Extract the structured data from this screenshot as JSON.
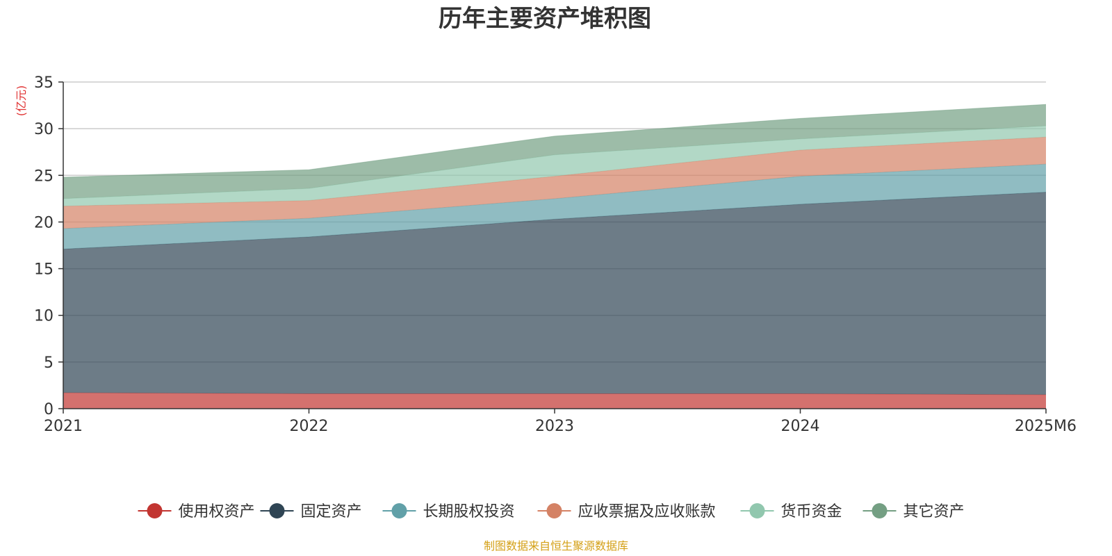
{
  "chart_data": {
    "type": "area",
    "stacked": true,
    "title": "历年主要资产堆积图",
    "ylabel": "(亿元)",
    "xlabel": "",
    "categories": [
      "2021",
      "2022",
      "2023",
      "2024",
      "2025M6"
    ],
    "yticks": [
      "0",
      "5",
      "10",
      "15",
      "20",
      "25",
      "30",
      "35"
    ],
    "ylim": [
      0,
      35
    ],
    "grid": true,
    "legend_position": "bottom",
    "series": [
      {
        "name": "使用权资产",
        "color": "#c23531",
        "values": [
          1.7,
          1.6,
          1.6,
          1.6,
          1.5
        ]
      },
      {
        "name": "固定资产",
        "color": "#2f4554",
        "values": [
          15.4,
          16.8,
          18.7,
          20.3,
          21.7
        ]
      },
      {
        "name": "长期股权投资",
        "color": "#61a0a8",
        "values": [
          2.2,
          2.0,
          2.2,
          3.0,
          3.0
        ]
      },
      {
        "name": "应收票据及应收账款",
        "color": "#d48265",
        "values": [
          2.4,
          1.9,
          2.4,
          2.8,
          2.9
        ]
      },
      {
        "name": "货币资金",
        "color": "#91c7ae",
        "values": [
          0.8,
          1.3,
          2.3,
          1.2,
          1.2
        ]
      },
      {
        "name": "其它资产",
        "color": "#749f83",
        "values": [
          2.3,
          2.0,
          2.0,
          2.2,
          2.3
        ]
      }
    ]
  },
  "source": {
    "text": "制图数据来自恒生聚源数据库",
    "color": "#d4a017"
  },
  "colors": {
    "unit": "#e03030",
    "axis": "#333333",
    "grid": "#cccccc"
  }
}
